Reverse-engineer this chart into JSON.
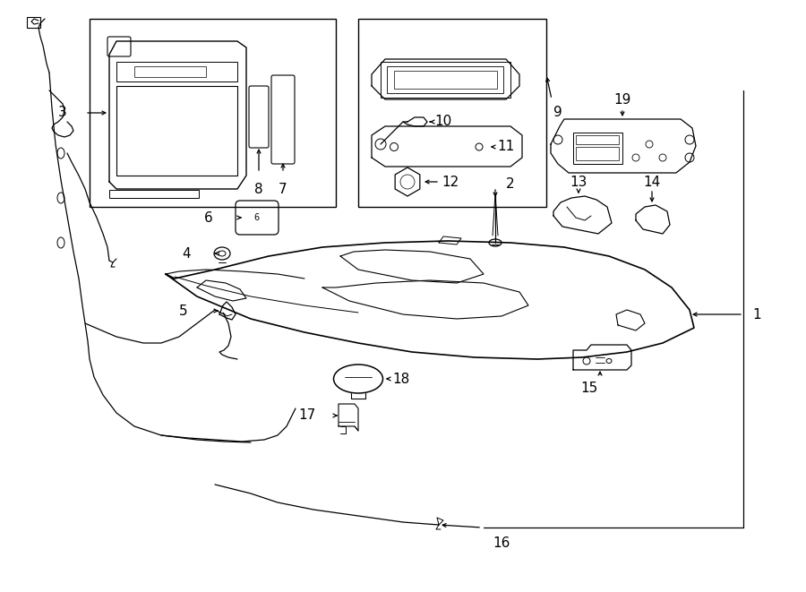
{
  "bg_color": "#ffffff",
  "line_color": "#000000",
  "fig_width": 9.0,
  "fig_height": 6.61,
  "dpi": 100,
  "lw_main": 1.1,
  "lw_thin": 0.7,
  "lw_wire": 0.9,
  "fontsize": 11
}
